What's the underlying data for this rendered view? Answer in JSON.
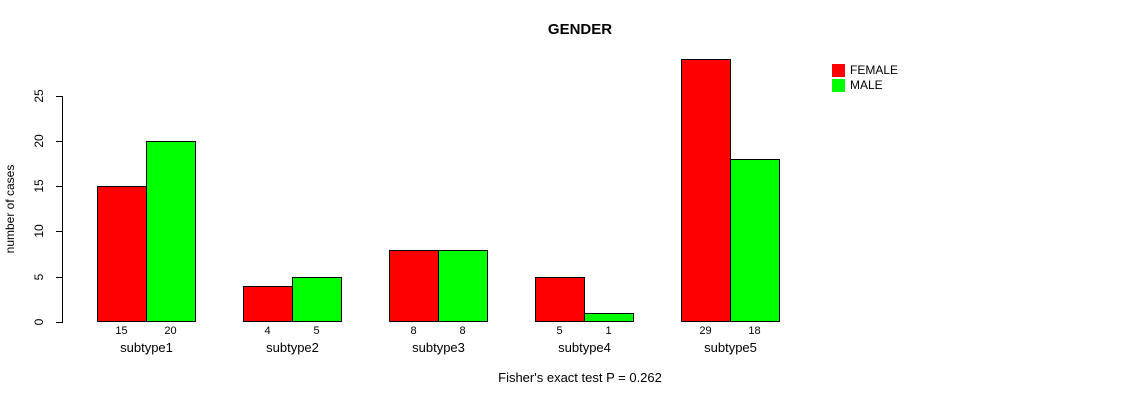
{
  "chart_data": {
    "type": "bar",
    "title": "GENDER",
    "ylabel": "number of cases",
    "xlabel": "",
    "footnote": "Fisher's exact test P = 0.262",
    "categories": [
      "subtype1",
      "subtype2",
      "subtype3",
      "subtype4",
      "subtype5"
    ],
    "series": [
      {
        "name": "FEMALE",
        "color": "#FF0000",
        "values": [
          15,
          4,
          8,
          5,
          29
        ]
      },
      {
        "name": "MALE",
        "color": "#00FF00",
        "values": [
          20,
          5,
          8,
          1,
          18
        ]
      }
    ],
    "value_labels": [
      [
        15,
        20
      ],
      [
        4,
        5
      ],
      [
        8,
        8
      ],
      [
        5,
        1
      ],
      [
        29,
        18
      ]
    ],
    "yticks": [
      0,
      5,
      10,
      15,
      20,
      25
    ],
    "ylim": [
      0,
      25
    ],
    "grid": false,
    "legend_position": "top-right",
    "bar_border_color": "#000000",
    "axis_color": "#000000",
    "background_color": "#FFFFFF"
  }
}
